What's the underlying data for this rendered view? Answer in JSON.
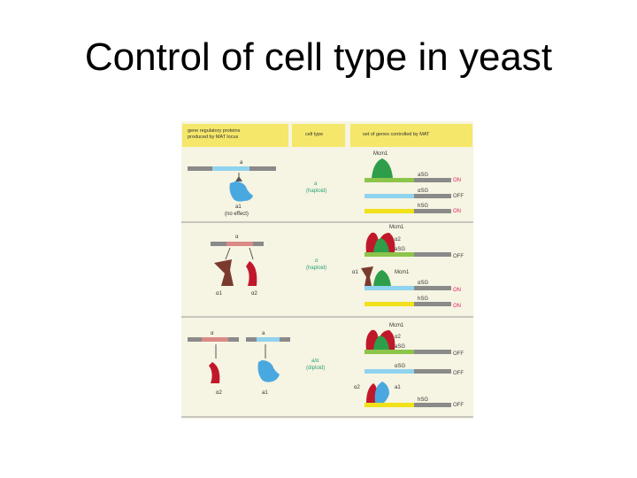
{
  "title": "Control of cell type in yeast",
  "header": {
    "col1_line1": "gene regulatory proteins",
    "col1_line2": "produced by MAT locus",
    "col2": "cell type",
    "col3": "set of genes controlled by MAT"
  },
  "rows": [
    {
      "locus_labels": [
        "a"
      ],
      "protein_label": "a1",
      "protein_note": "(no effect)",
      "cell_type": "a",
      "ploidy": "(haploid)",
      "factor": "Mcm1",
      "genes": [
        {
          "name": "aSG",
          "state": "ON"
        },
        {
          "name": "αSG",
          "state": "OFF"
        },
        {
          "name": "hSG",
          "state": "ON"
        }
      ]
    },
    {
      "locus_labels": [
        "α"
      ],
      "protein_labels": [
        "α1",
        "α2"
      ],
      "cell_type": "α",
      "ploidy": "(haploid)",
      "factor_labels": [
        "Mcm1",
        "α2",
        "α1",
        "Mcm1"
      ],
      "genes": [
        {
          "name": "aSG",
          "state": "OFF"
        },
        {
          "name": "αSG",
          "state": "ON"
        },
        {
          "name": "hSG",
          "state": "ON"
        }
      ]
    },
    {
      "locus_labels": [
        "α",
        "a"
      ],
      "protein_labels": [
        "α2",
        "a1"
      ],
      "cell_type": "a/α",
      "ploidy": "(diploid)",
      "factor_labels": [
        "Mcm1",
        "α2",
        "α2",
        "a1"
      ],
      "genes": [
        {
          "name": "aSG",
          "state": "OFF"
        },
        {
          "name": "αSG",
          "state": "OFF"
        },
        {
          "name": "hSG",
          "state": "OFF"
        }
      ]
    }
  ],
  "colors": {
    "header_bg": "#f5e76a",
    "panel_bg": "#f6f4e2",
    "a1_blue": "#4aa8e0",
    "alpha1_brown": "#7a3b2e",
    "alpha2_red": "#c0182a",
    "mcm1_green": "#2e9e4a",
    "on_text": "#e0245e",
    "aSG_bar": "#8cc54a",
    "alphaSG_bar": "#8fd3ef",
    "hSG_bar": "#f0e11a"
  }
}
